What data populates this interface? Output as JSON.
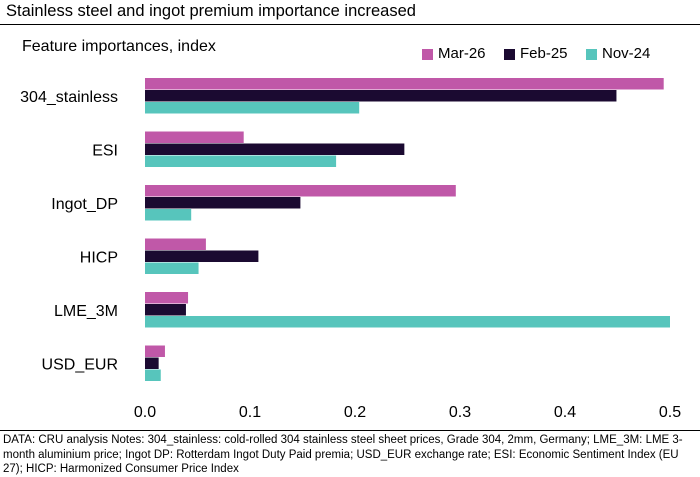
{
  "header": {
    "title": "Stainless steel and ingot premium importance increased",
    "subtitle": "Feature importances, index"
  },
  "chart_data": {
    "type": "bar",
    "orientation": "horizontal",
    "title": "Stainless steel and ingot premium importance increased",
    "ylabel": "Feature importances, index",
    "xlabel": "",
    "categories": [
      "304_stainless",
      "ESI",
      "Ingot_DP",
      "HICP",
      "LME_3M",
      "USD_EUR"
    ],
    "series": [
      {
        "name": "Mar-26",
        "color": "#c058a8",
        "values": [
          0.494,
          0.094,
          0.296,
          0.058,
          0.041,
          0.019
        ]
      },
      {
        "name": "Feb-25",
        "color": "#1b0a31",
        "values": [
          0.449,
          0.247,
          0.148,
          0.108,
          0.039,
          0.013
        ]
      },
      {
        "name": "Nov-24",
        "color": "#57c5bc",
        "values": [
          0.204,
          0.182,
          0.044,
          0.051,
          0.5,
          0.015
        ]
      }
    ],
    "xlim": [
      0.0,
      0.5
    ],
    "xticks": [
      "0.0",
      "0.1",
      "0.2",
      "0.3",
      "0.4",
      "0.5"
    ],
    "grid": false,
    "legend_position": "top-right"
  },
  "footnote": "DATA: CRU analysis Notes: 304_stainless: cold-rolled 304 stainless steel sheet prices, Grade 304, 2mm, Germany; LME_3M: LME 3-month aluminium price; Ingot DP: Rotterdam Ingot Duty Paid premia; USD_EUR exchange rate; ESI: Economic Sentiment Index (EU 27); HICP: Harmonized Consumer Price Index"
}
